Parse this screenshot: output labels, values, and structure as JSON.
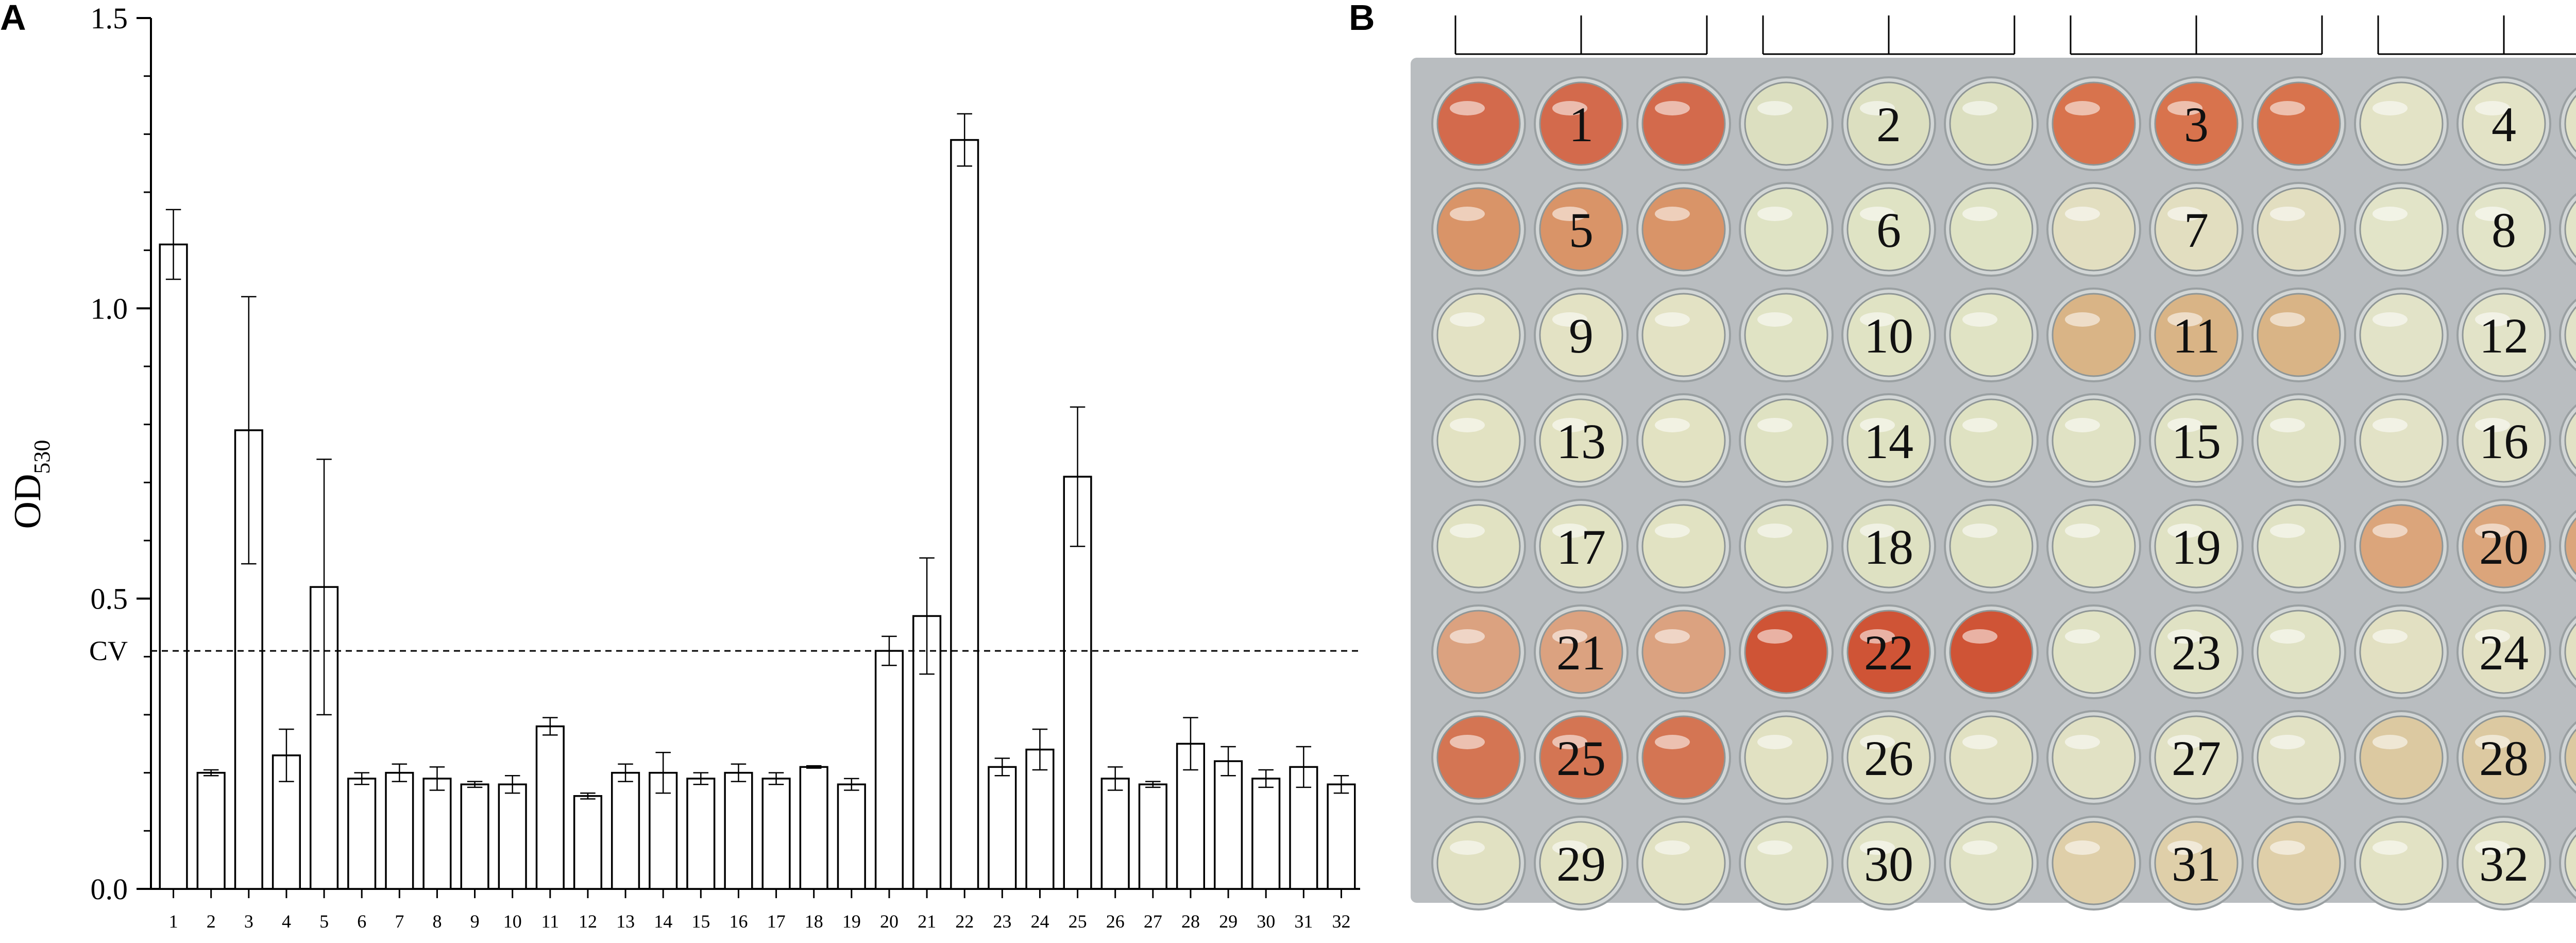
{
  "panels": {
    "a": "A",
    "b": "B"
  },
  "chart_data": {
    "type": "bar",
    "title": "",
    "ylabel_main": "OD",
    "ylabel_sub": "530",
    "xlabel": "",
    "ylim": [
      0,
      1.5
    ],
    "yticks": [
      "0.0",
      "0.5",
      "1.0",
      "1.5"
    ],
    "cutoff": {
      "label": "CV",
      "value": 0.41
    },
    "categories": [
      "1",
      "2",
      "3",
      "4",
      "5",
      "6",
      "7",
      "8",
      "9",
      "10",
      "11",
      "12",
      "13",
      "14",
      "15",
      "16",
      "17",
      "18",
      "19",
      "20",
      "21",
      "22",
      "23",
      "24",
      "25",
      "26",
      "27",
      "28",
      "29",
      "30",
      "31",
      "32"
    ],
    "values": [
      1.11,
      0.2,
      0.79,
      0.23,
      0.52,
      0.19,
      0.2,
      0.19,
      0.18,
      0.18,
      0.28,
      0.16,
      0.2,
      0.2,
      0.19,
      0.2,
      0.19,
      0.21,
      0.18,
      0.41,
      0.47,
      1.29,
      0.21,
      0.24,
      0.71,
      0.19,
      0.18,
      0.25,
      0.22,
      0.19,
      0.21,
      0.18
    ],
    "errors": [
      0.06,
      0.005,
      0.23,
      0.045,
      0.22,
      0.01,
      0.015,
      0.02,
      0.005,
      0.015,
      0.015,
      0.005,
      0.015,
      0.035,
      0.01,
      0.015,
      0.01,
      0.002,
      0.01,
      0.025,
      0.1,
      0.045,
      0.015,
      0.035,
      0.12,
      0.02,
      0.005,
      0.045,
      0.025,
      0.015,
      0.035,
      0.015
    ]
  },
  "plate": {
    "well_numbers": [
      "1",
      "2",
      "3",
      "4",
      "5",
      "6",
      "7",
      "8",
      "9",
      "10",
      "11",
      "12",
      "13",
      "14",
      "15",
      "16",
      "17",
      "18",
      "19",
      "20",
      "21",
      "22",
      "23",
      "24",
      "25",
      "26",
      "27",
      "28",
      "29",
      "30",
      "31",
      "32"
    ],
    "well_colors": [
      "#d36a4c",
      "#dcdfc0",
      "#d8734d",
      "#e3e3c6",
      "#d99468",
      "#dfe3c4",
      "#e2dec0",
      "#e2e4c8",
      "#e3e2c4",
      "#e0e3c4",
      "#d9b486",
      "#e2e3c8",
      "#e2e2c2",
      "#dfe2c2",
      "#e0e2c4",
      "#e2e2c6",
      "#e1e2c2",
      "#dee1c2",
      "#e0e2c4",
      "#dba57b",
      "#dba280",
      "#cf5436",
      "#e0e2c4",
      "#e2e0c2",
      "#d47553",
      "#e1e1c2",
      "#e1e1c4",
      "#dcc9a1",
      "#e1e1c2",
      "#e0e2c4",
      "#dfcfa9",
      "#e2e2c4"
    ],
    "plate_background": "#b9bdc0"
  }
}
